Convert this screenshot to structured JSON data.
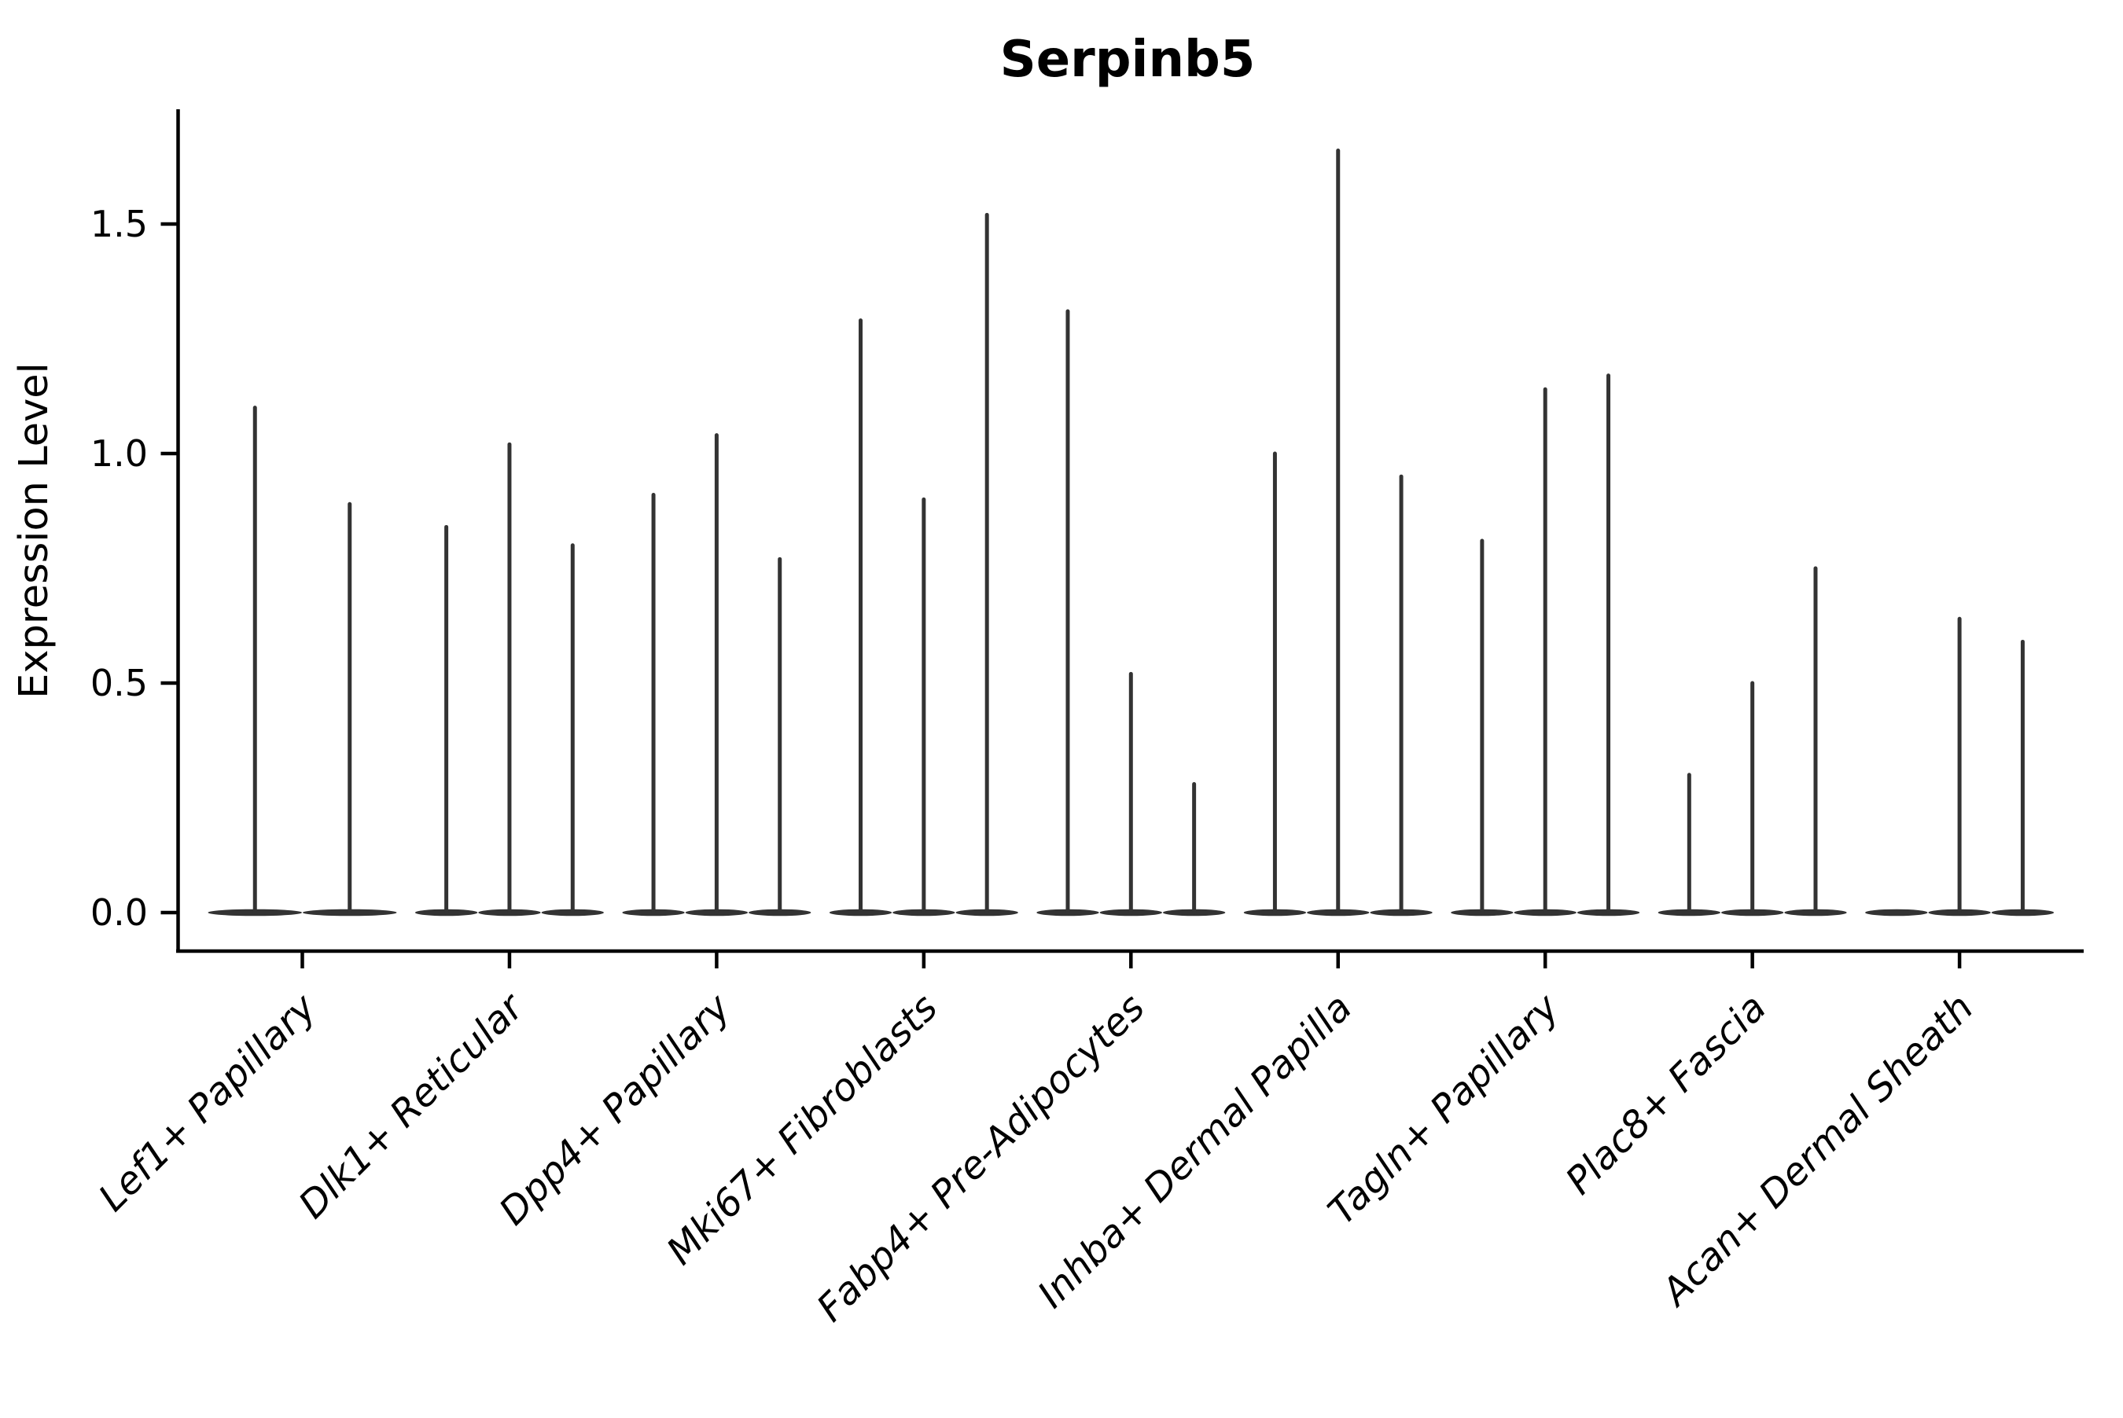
{
  "chart_data": {
    "type": "violin",
    "title": "Serpinb5",
    "xlabel": "",
    "ylabel": "Expression Level",
    "ylim": [
      0,
      1.75
    ],
    "yticks": [
      0.0,
      0.5,
      1.0,
      1.5
    ],
    "ytick_labels": [
      "0.0",
      "0.5",
      "1.0",
      "1.5"
    ],
    "grid": false,
    "legend": "none",
    "categories": [
      "Lef1+ Papillary",
      "Dlk1+ Reticular",
      "Dpp4+ Papillary",
      "Mki67+ Fibroblasts",
      "Fabp4+ Pre-Adipocytes",
      "Inhba+ Dermal Papilla",
      "Tagln+ Papillary",
      "Plac8+ Fascia",
      "Acan+ Dermal Sheath"
    ],
    "violins": [
      {
        "category": "Lef1+ Papillary",
        "max_values": [
          1.1,
          0.89
        ]
      },
      {
        "category": "Dlk1+ Reticular",
        "max_values": [
          0.84,
          1.02,
          0.8
        ]
      },
      {
        "category": "Dpp4+ Papillary",
        "max_values": [
          0.91,
          1.04,
          0.77
        ]
      },
      {
        "category": "Mki67+ Fibroblasts",
        "max_values": [
          1.29,
          0.9,
          1.52
        ]
      },
      {
        "category": "Fabp4+ Pre-Adipocytes",
        "max_values": [
          1.31,
          0.52,
          0.28
        ]
      },
      {
        "category": "Inhba+ Dermal Papilla",
        "max_values": [
          1.0,
          1.66,
          0.95
        ]
      },
      {
        "category": "Tagln+ Papillary",
        "max_values": [
          0.81,
          1.14,
          1.17
        ]
      },
      {
        "category": "Plac8+ Fascia",
        "max_values": [
          0.3,
          0.5,
          0.75
        ]
      },
      {
        "category": "Acan+ Dermal Sheath",
        "max_values": [
          0.0,
          0.64,
          0.59
        ]
      }
    ],
    "violin_shape_note": "each violin is a wide flat density base at 0 with a thin vertical spike reaching its max expression value",
    "colors": {
      "violin": "#333333",
      "axis": "#000000",
      "text": "#000000",
      "background": "#ffffff"
    }
  }
}
